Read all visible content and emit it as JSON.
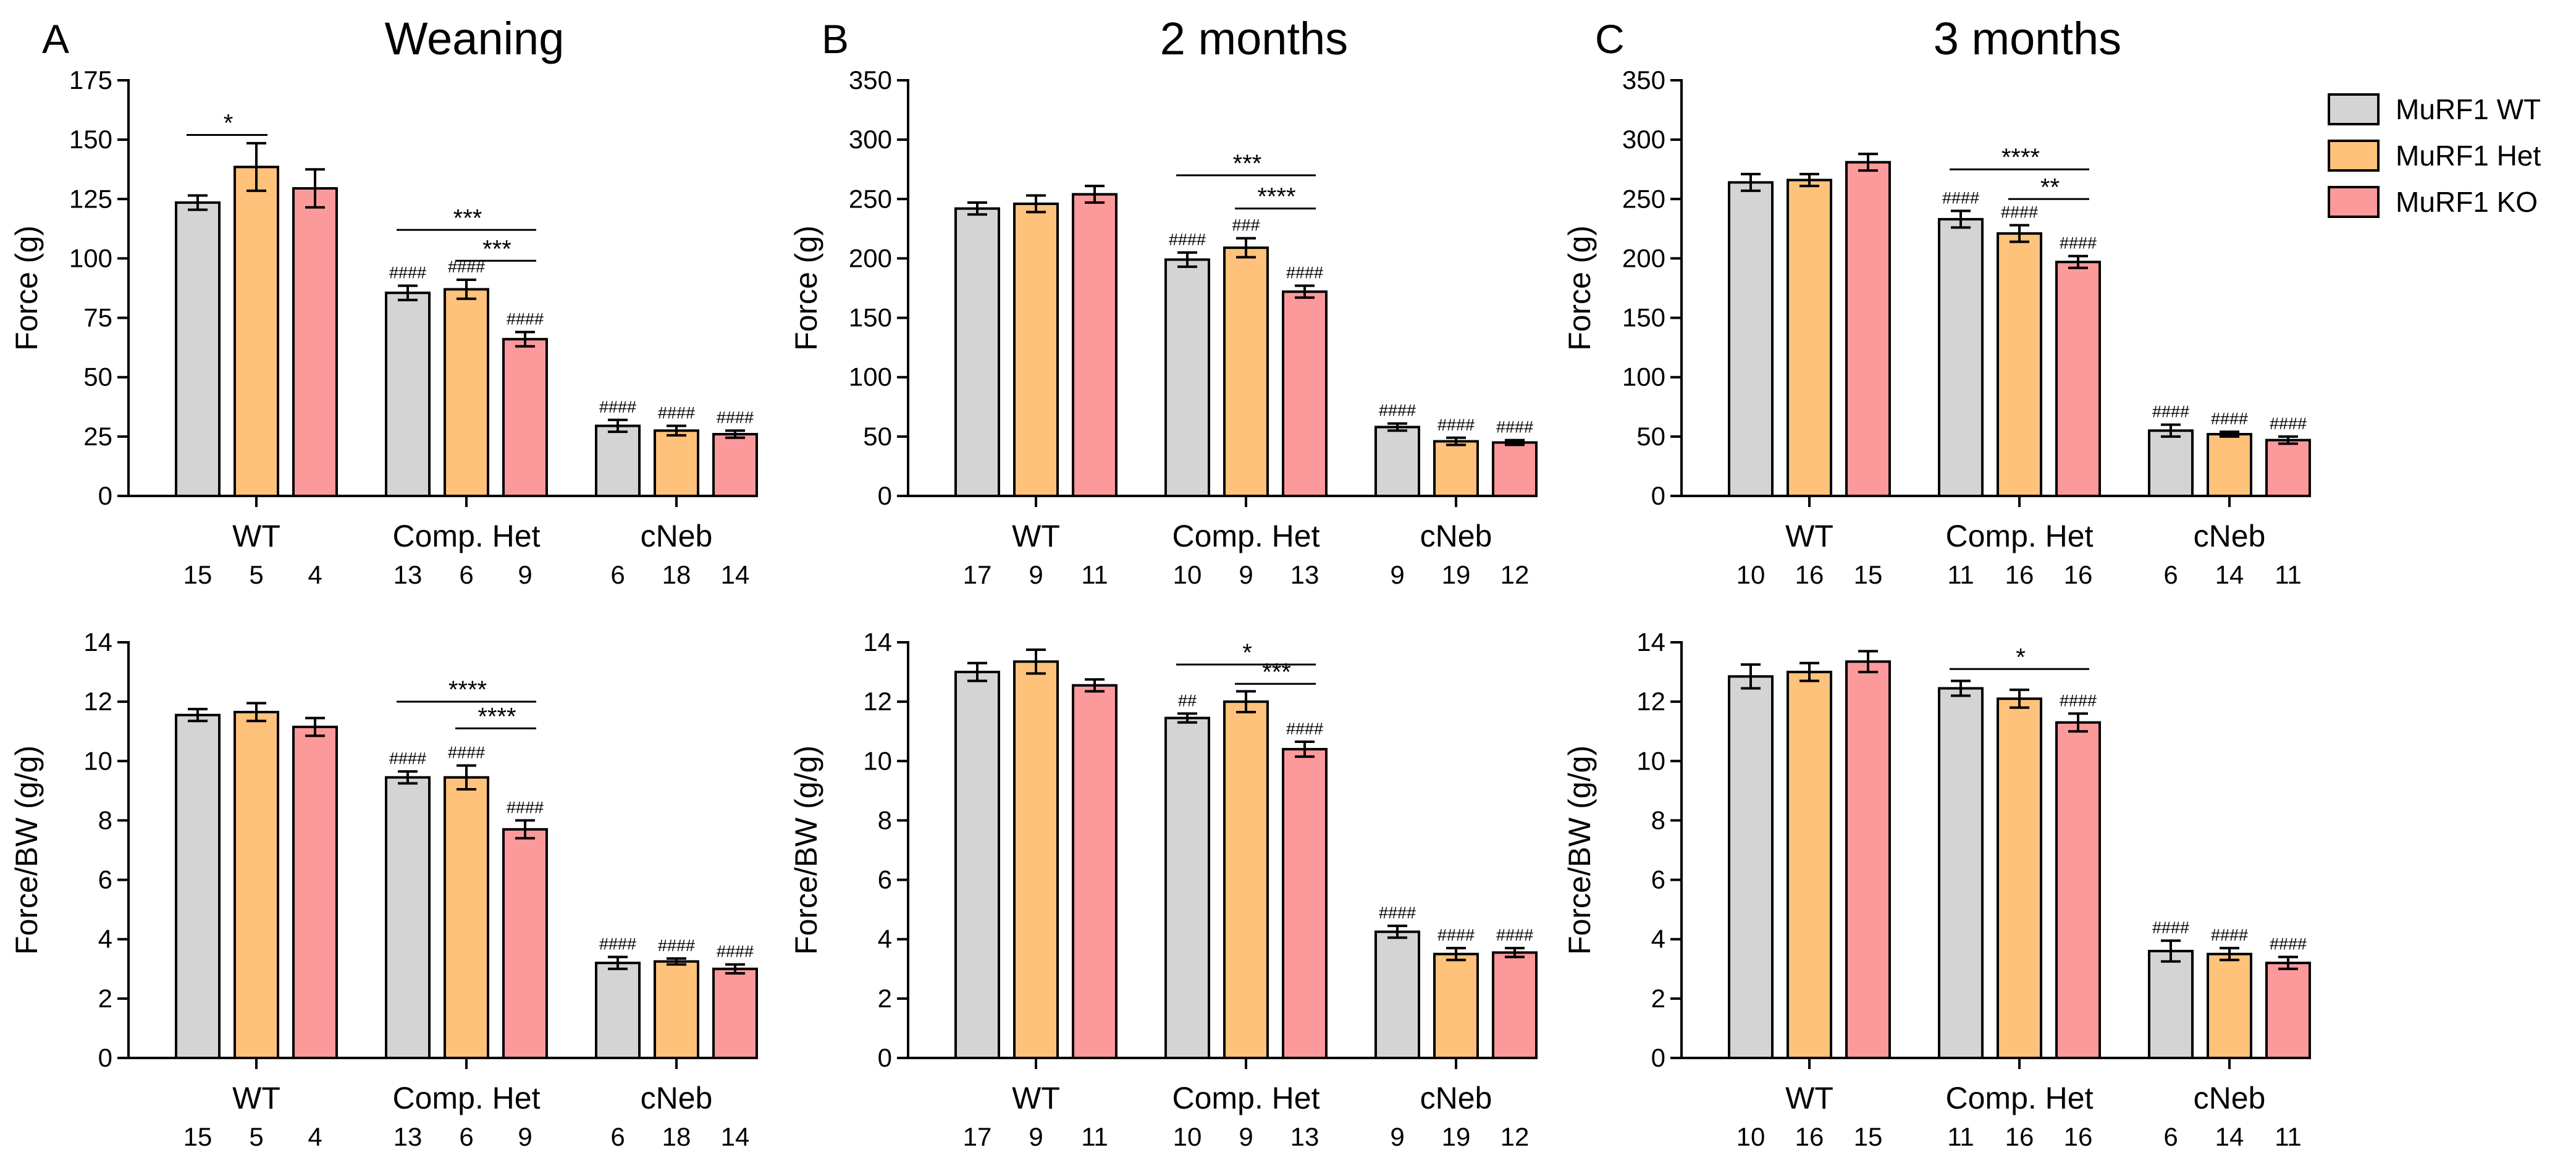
{
  "colors": {
    "wt": "#d4d4d4",
    "het": "#ffc27a",
    "ko": "#fc999b"
  },
  "legend": [
    {
      "key": "wt",
      "label": "MuRF1 WT"
    },
    {
      "key": "het",
      "label": "MuRF1 Het"
    },
    {
      "key": "ko",
      "label": "MuRF1 KO"
    }
  ],
  "chart_data": [
    {
      "type": "bar",
      "panel": "A",
      "title": "Weaning",
      "ylabel": "Force (g)",
      "ylim": [
        0,
        175
      ],
      "yticks": [
        0,
        25,
        50,
        75,
        100,
        125,
        150,
        175
      ],
      "groups": [
        "WT",
        "Comp. Het",
        "cNeb"
      ],
      "series": [
        {
          "name": "MuRF1 WT",
          "values": [
            123.5,
            85.5,
            29.5
          ],
          "errors": [
            3,
            3,
            2.5
          ],
          "n": [
            "15",
            "13",
            "6"
          ],
          "marks": [
            "",
            "####",
            "####"
          ]
        },
        {
          "name": "MuRF1 Het",
          "values": [
            138.5,
            87,
            27.5
          ],
          "errors": [
            10,
            4,
            2
          ],
          "n": [
            "5",
            "6",
            "18"
          ],
          "marks": [
            "",
            "####",
            "####"
          ]
        },
        {
          "name": "MuRF1 KO",
          "values": [
            129.5,
            66,
            26
          ],
          "errors": [
            8,
            3,
            1.5
          ],
          "n": [
            "4",
            "9",
            "14"
          ],
          "marks": [
            "",
            "####",
            "####"
          ]
        }
      ],
      "significance": [
        {
          "group": 0,
          "from": 0,
          "to": 1,
          "label": "*",
          "y": 152
        },
        {
          "group": 1,
          "from": 0,
          "to": 2,
          "label": "***",
          "y": 112
        },
        {
          "group": 1,
          "from": 1,
          "to": 2,
          "label": "***",
          "y": 99
        }
      ]
    },
    {
      "type": "bar",
      "panel": "B",
      "title": "2 months",
      "ylabel": "Force (g)",
      "ylim": [
        0,
        350
      ],
      "yticks": [
        0,
        50,
        100,
        150,
        200,
        250,
        300,
        350
      ],
      "groups": [
        "WT",
        "Comp. Het",
        "cNeb"
      ],
      "series": [
        {
          "name": "MuRF1 WT",
          "values": [
            242,
            199,
            58
          ],
          "errors": [
            5,
            6,
            3
          ],
          "n": [
            "17",
            "10",
            "9"
          ],
          "marks": [
            "",
            "####",
            "####"
          ]
        },
        {
          "name": "MuRF1 Het",
          "values": [
            246,
            209,
            46
          ],
          "errors": [
            7,
            8,
            3
          ],
          "n": [
            "9",
            "9",
            "19"
          ],
          "marks": [
            "",
            "###",
            "####"
          ]
        },
        {
          "name": "MuRF1 KO",
          "values": [
            254,
            172,
            45
          ],
          "errors": [
            7,
            5,
            2
          ],
          "n": [
            "11",
            "13",
            "12"
          ],
          "marks": [
            "",
            "####",
            "####"
          ]
        }
      ],
      "significance": [
        {
          "group": 1,
          "from": 0,
          "to": 2,
          "label": "***",
          "y": 270
        },
        {
          "group": 1,
          "from": 1,
          "to": 2,
          "label": "****",
          "y": 242
        }
      ]
    },
    {
      "type": "bar",
      "panel": "C",
      "title": "3 months",
      "ylabel": "Force (g)",
      "ylim": [
        0,
        350
      ],
      "yticks": [
        0,
        50,
        100,
        150,
        200,
        250,
        300,
        350
      ],
      "groups": [
        "WT",
        "Comp. Het",
        "cNeb"
      ],
      "series": [
        {
          "name": "MuRF1 WT",
          "values": [
            264,
            233,
            55
          ],
          "errors": [
            7,
            7,
            5
          ],
          "n": [
            "10",
            "11",
            "6"
          ],
          "marks": [
            "",
            "####",
            "####"
          ]
        },
        {
          "name": "MuRF1 Het",
          "values": [
            266,
            221,
            52
          ],
          "errors": [
            5,
            7,
            2
          ],
          "n": [
            "16",
            "16",
            "14"
          ],
          "marks": [
            "",
            "####",
            "####"
          ]
        },
        {
          "name": "MuRF1 KO",
          "values": [
            281,
            197,
            47
          ],
          "errors": [
            7,
            5,
            3
          ],
          "n": [
            "15",
            "16",
            "11"
          ],
          "marks": [
            "",
            "####",
            "####"
          ]
        }
      ],
      "significance": [
        {
          "group": 1,
          "from": 0,
          "to": 2,
          "label": "****",
          "y": 275
        },
        {
          "group": 1,
          "from": 1,
          "to": 2,
          "label": "**",
          "y": 250
        }
      ]
    },
    {
      "type": "bar",
      "panel": "A",
      "title": "",
      "ylabel": "Force/BW (g/g)",
      "ylim": [
        0,
        14
      ],
      "yticks": [
        0,
        2,
        4,
        6,
        8,
        10,
        12,
        14
      ],
      "groups": [
        "WT",
        "Comp. Het",
        "cNeb"
      ],
      "series": [
        {
          "name": "MuRF1 WT",
          "values": [
            11.55,
            9.45,
            3.2
          ],
          "errors": [
            0.2,
            0.2,
            0.2
          ],
          "n": [
            "15",
            "13",
            "6"
          ],
          "marks": [
            "",
            "####",
            "####"
          ]
        },
        {
          "name": "MuRF1 Het",
          "values": [
            11.65,
            9.45,
            3.25
          ],
          "errors": [
            0.3,
            0.4,
            0.1
          ],
          "n": [
            "5",
            "6",
            "18"
          ],
          "marks": [
            "",
            "####",
            "####"
          ]
        },
        {
          "name": "MuRF1 KO",
          "values": [
            11.15,
            7.7,
            3.0
          ],
          "errors": [
            0.3,
            0.3,
            0.15
          ],
          "n": [
            "4",
            "9",
            "14"
          ],
          "marks": [
            "",
            "####",
            "####"
          ]
        }
      ],
      "significance": [
        {
          "group": 1,
          "from": 0,
          "to": 2,
          "label": "****",
          "y": 12.0
        },
        {
          "group": 1,
          "from": 1,
          "to": 2,
          "label": "****",
          "y": 11.1
        }
      ]
    },
    {
      "type": "bar",
      "panel": "B",
      "title": "",
      "ylabel": "Force/BW (g/g)",
      "ylim": [
        0,
        14
      ],
      "yticks": [
        0,
        2,
        4,
        6,
        8,
        10,
        12,
        14
      ],
      "groups": [
        "WT",
        "Comp. Het",
        "cNeb"
      ],
      "series": [
        {
          "name": "MuRF1 WT",
          "values": [
            13.0,
            11.45,
            4.25
          ],
          "errors": [
            0.3,
            0.15,
            0.2
          ],
          "n": [
            "17",
            "10",
            "9"
          ],
          "marks": [
            "",
            "##",
            "####"
          ]
        },
        {
          "name": "MuRF1 Het",
          "values": [
            13.35,
            12.0,
            3.5
          ],
          "errors": [
            0.4,
            0.35,
            0.2
          ],
          "n": [
            "9",
            "9",
            "19"
          ],
          "marks": [
            "",
            "",
            "####"
          ]
        },
        {
          "name": "MuRF1 KO",
          "values": [
            12.55,
            10.4,
            3.55
          ],
          "errors": [
            0.2,
            0.25,
            0.15
          ],
          "n": [
            "11",
            "13",
            "12"
          ],
          "marks": [
            "",
            "####",
            "####"
          ]
        }
      ],
      "significance": [
        {
          "group": 1,
          "from": 0,
          "to": 2,
          "label": "*",
          "y": 13.25
        },
        {
          "group": 1,
          "from": 1,
          "to": 2,
          "label": "***",
          "y": 12.6
        }
      ]
    },
    {
      "type": "bar",
      "panel": "C",
      "title": "",
      "ylabel": "Force/BW (g/g)",
      "ylim": [
        0,
        14
      ],
      "yticks": [
        0,
        2,
        4,
        6,
        8,
        10,
        12,
        14
      ],
      "groups": [
        "WT",
        "Comp. Het",
        "cNeb"
      ],
      "series": [
        {
          "name": "MuRF1 WT",
          "values": [
            12.85,
            12.45,
            3.6
          ],
          "errors": [
            0.4,
            0.25,
            0.35
          ],
          "n": [
            "10",
            "11",
            "6"
          ],
          "marks": [
            "",
            "",
            "####"
          ]
        },
        {
          "name": "MuRF1 Het",
          "values": [
            13.0,
            12.1,
            3.5
          ],
          "errors": [
            0.3,
            0.3,
            0.2
          ],
          "n": [
            "16",
            "16",
            "14"
          ],
          "marks": [
            "",
            "",
            "####"
          ]
        },
        {
          "name": "MuRF1 KO",
          "values": [
            13.35,
            11.3,
            3.2
          ],
          "errors": [
            0.35,
            0.3,
            0.2
          ],
          "n": [
            "15",
            "16",
            "11"
          ],
          "marks": [
            "",
            "####",
            "####"
          ]
        }
      ],
      "significance": [
        {
          "group": 1,
          "from": 0,
          "to": 2,
          "label": "*",
          "y": 13.1
        }
      ]
    }
  ]
}
